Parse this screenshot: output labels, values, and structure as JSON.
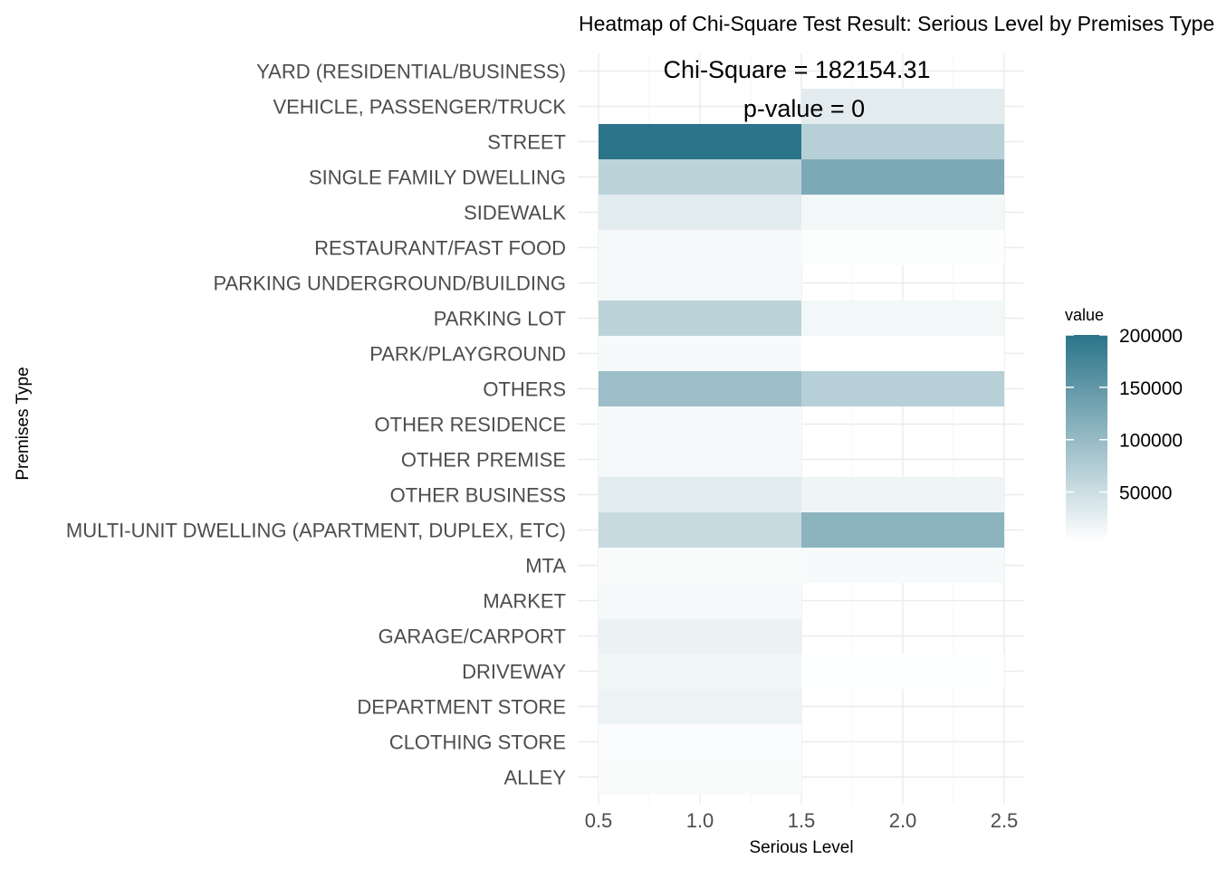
{
  "chart_data": {
    "type": "heatmap",
    "title": "Heatmap of Chi-Square Test Result: Serious Level by Premises Type",
    "xlabel": "Serious Level",
    "ylabel": "Premises Type",
    "x_ticks": [
      "0.5",
      "1.0",
      "1.5",
      "2.0",
      "2.5"
    ],
    "xlim": [
      0.5,
      2.5
    ],
    "x_values": [
      1,
      2
    ],
    "categories": [
      "ALLEY",
      "CLOTHING STORE",
      "DEPARTMENT STORE",
      "DRIVEWAY",
      "GARAGE/CARPORT",
      "MARKET",
      "MTA",
      "MULTI-UNIT DWELLING (APARTMENT, DUPLEX, ETC)",
      "OTHER BUSINESS",
      "OTHER PREMISE",
      "OTHER RESIDENCE",
      "OTHERS",
      "PARK/PLAYGROUND",
      "PARKING LOT",
      "PARKING UNDERGROUND/BUILDING",
      "RESTAURANT/FAST FOOD",
      "SIDEWALK",
      "SINGLE FAMILY DWELLING",
      "STREET",
      "VEHICLE, PASSENGER/TRUCK",
      "YARD (RESIDENTIAL/BUSINESS)"
    ],
    "series": [
      {
        "x": 1,
        "values": [
          9000,
          8000,
          20000,
          16000,
          22000,
          10000,
          9000,
          55000,
          30000,
          11000,
          10000,
          95000,
          10000,
          65000,
          11000,
          12000,
          30000,
          65000,
          200000,
          null,
          null
        ]
      },
      {
        "x": 2,
        "values": [
          null,
          null,
          null,
          5000,
          null,
          null,
          10000,
          110000,
          18000,
          null,
          null,
          70000,
          3000,
          15000,
          null,
          6000,
          15000,
          125000,
          70000,
          30000,
          null
        ]
      }
    ],
    "annotations": [
      "Chi-Square =  182154.31",
      "p-value =  0"
    ],
    "legend": {
      "title": "value",
      "ticks": [
        "200000",
        "150000",
        "100000",
        "50000"
      ],
      "tick_values": [
        200000,
        150000,
        100000,
        50000
      ],
      "range": [
        3000,
        200000
      ],
      "low_color": "#ffffff",
      "high_color": "#2b7489",
      "position": "right"
    },
    "grid": true
  }
}
